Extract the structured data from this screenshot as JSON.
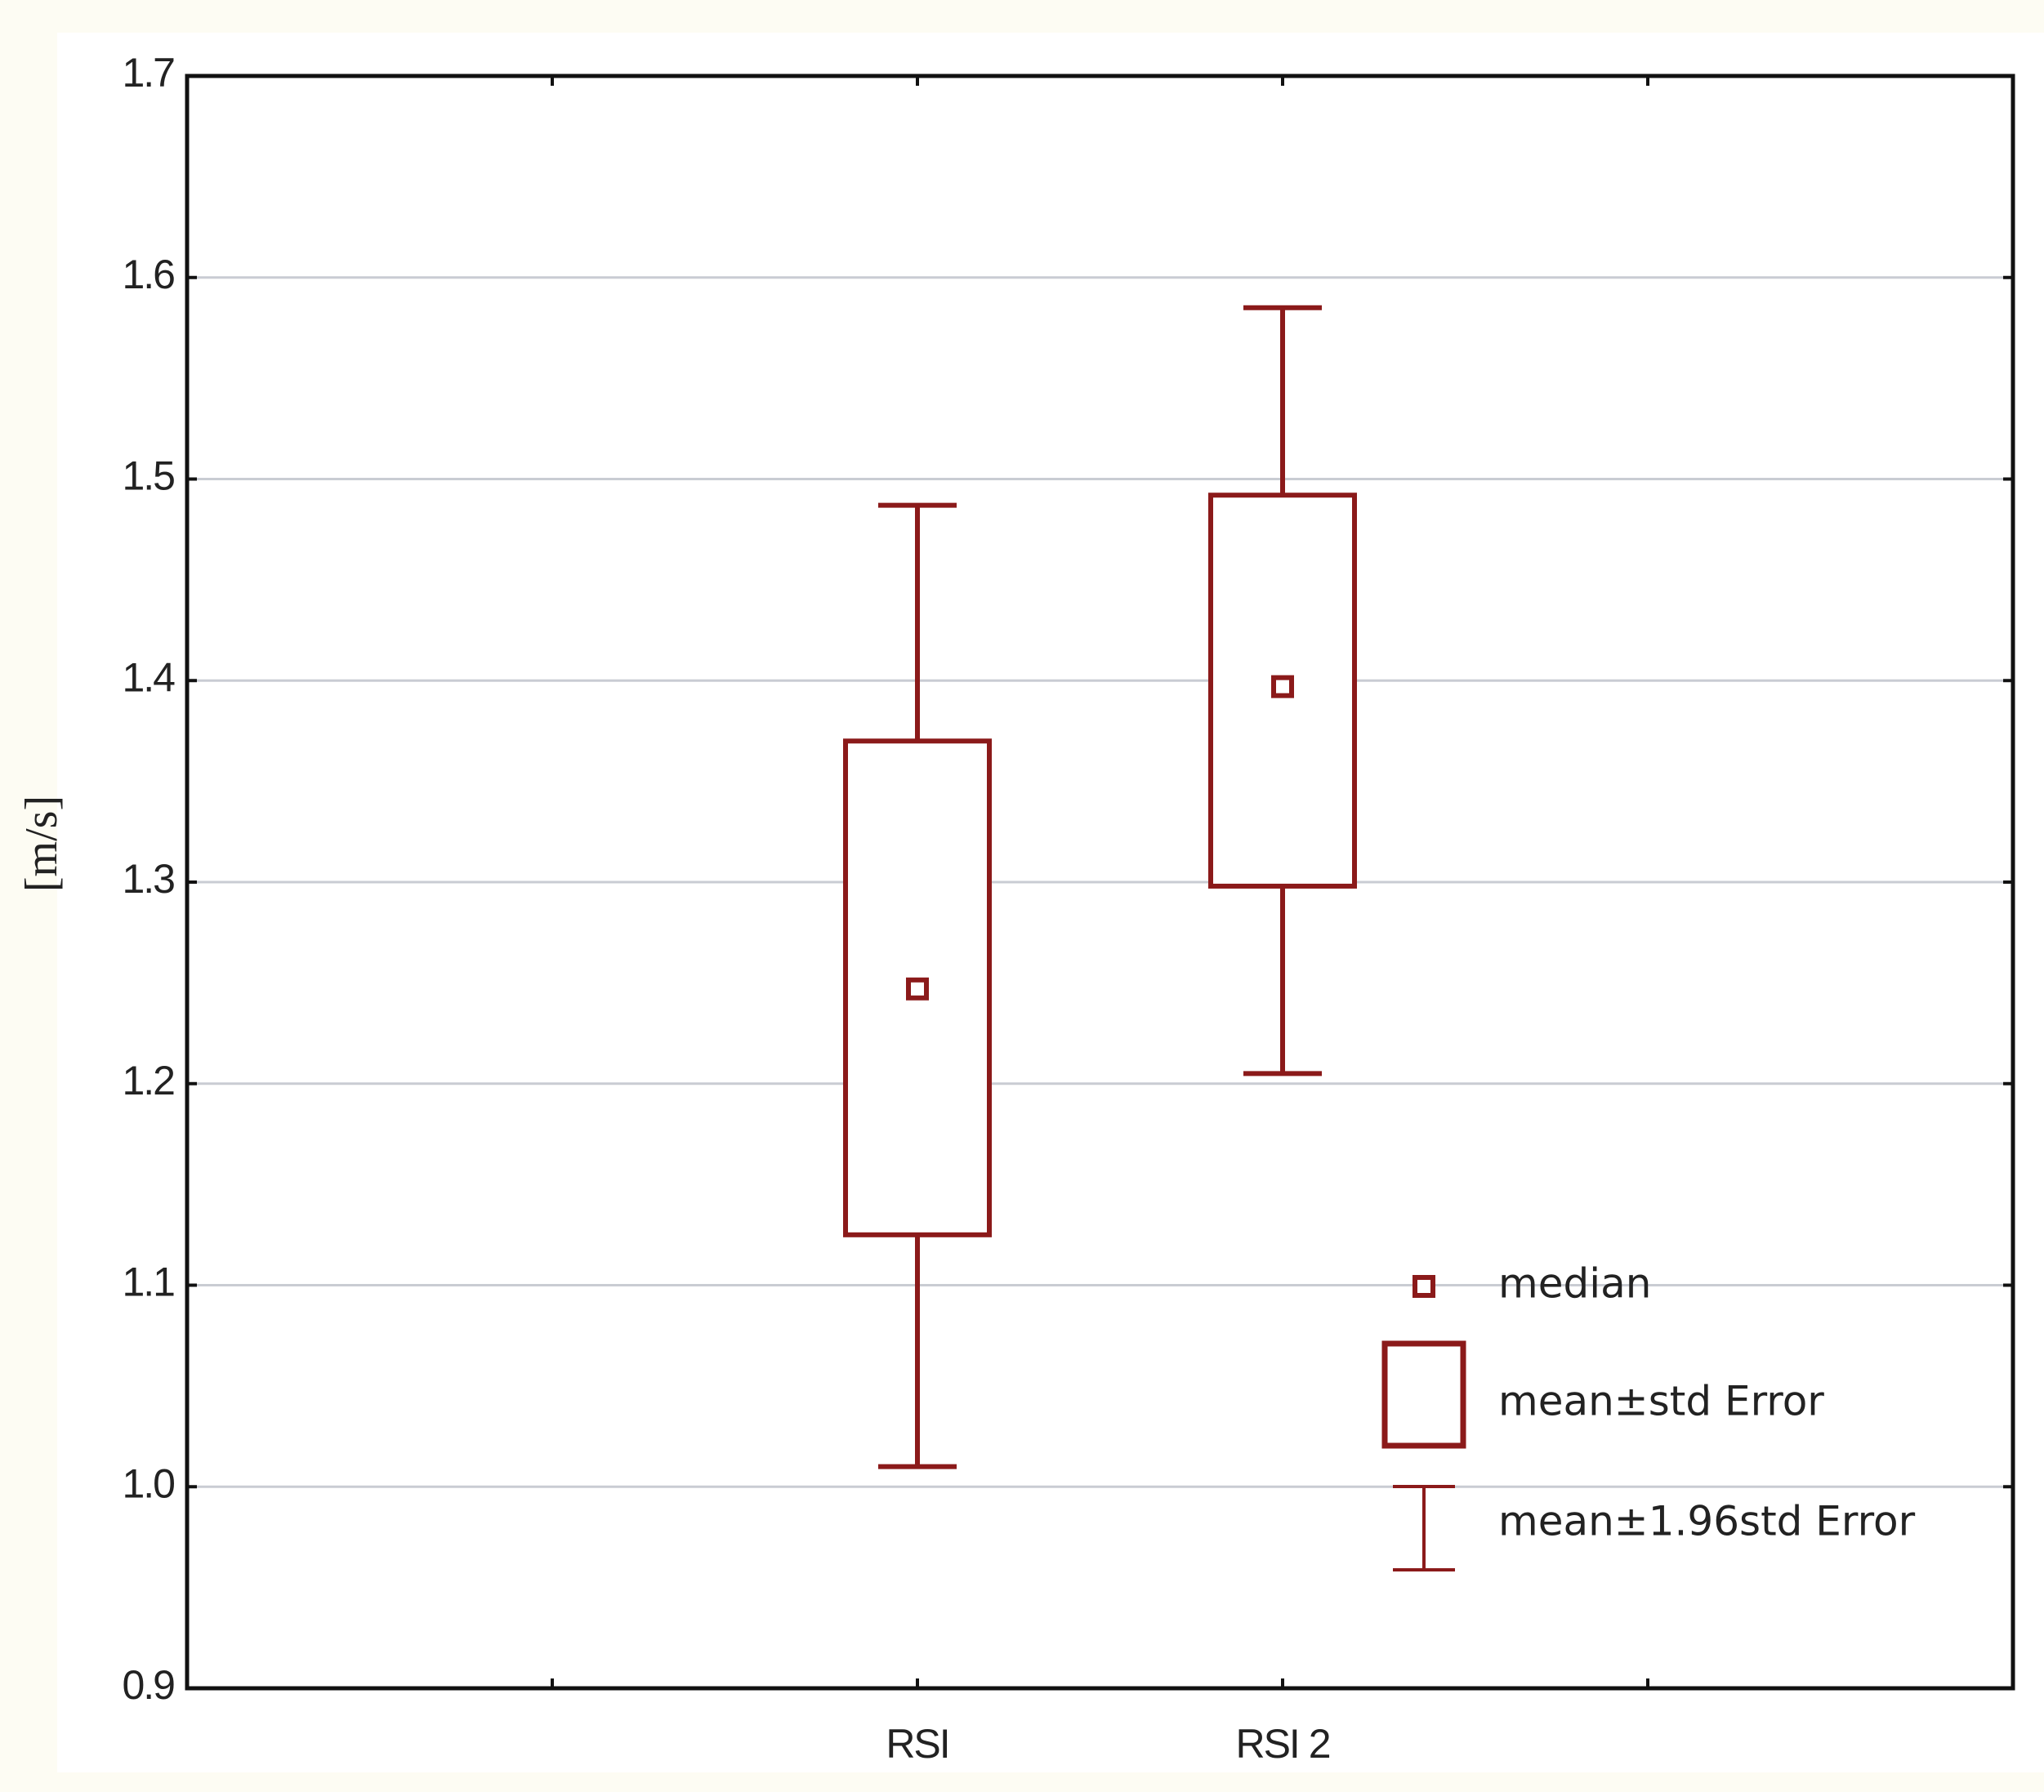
{
  "chart_data": {
    "type": "box",
    "y_label": "[m/s]",
    "categories": [
      null,
      "RSI",
      "RSI 2",
      null
    ],
    "median": [
      null,
      1.247,
      1.397,
      null
    ],
    "box_low": [
      null,
      1.125,
      1.298,
      null
    ],
    "box_high": [
      null,
      1.37,
      1.492,
      null
    ],
    "whisker_low": [
      null,
      1.01,
      1.205,
      null
    ],
    "whisker_high": [
      null,
      1.487,
      1.585,
      null
    ],
    "color": "#8b1a1a",
    "ylim": [
      0.9,
      1.7
    ],
    "yticks": [
      0.9,
      {
        "value": 1,
        "label": "1.0"
      },
      1.1,
      1.2,
      1.3,
      1.4,
      1.5,
      1.6,
      1.7
    ],
    "grid": true,
    "legend": [
      "median",
      "mean±std Error",
      "mean±1.96std Error"
    ]
  }
}
